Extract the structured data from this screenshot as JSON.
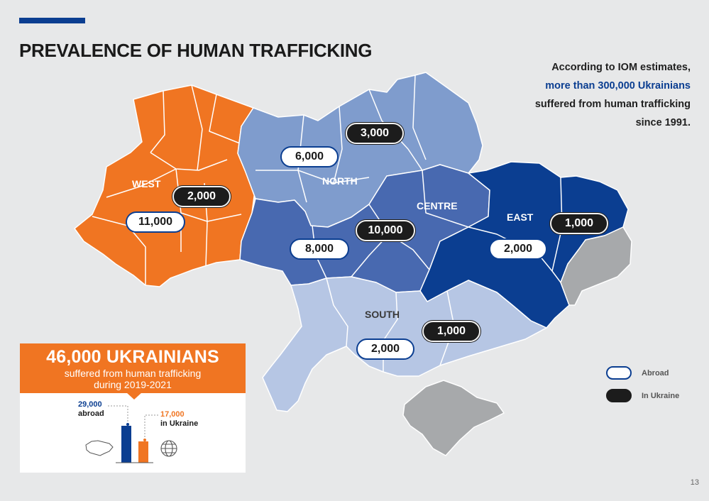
{
  "title": "PREVALENCE OF HUMAN TRAFFICKING",
  "intro": {
    "line1": "According to IOM estimates,",
    "highlight": "more than 300,000 Ukrainians",
    "line3": "suffered from human trafficking",
    "line4": "since 1991."
  },
  "regions": {
    "west": "WEST",
    "north": "NORTH",
    "centre": "CENTRE",
    "east": "EAST",
    "south": "SOUTH"
  },
  "values": {
    "west_abroad": "11,000",
    "west_ukraine": "2,000",
    "north_abroad_a": "6,000",
    "north_ukraine_a": "3,000",
    "north_abroad_b": "8,000",
    "centre_ukraine": "10,000",
    "east_ukraine": "1,000",
    "east_abroad": "2,000",
    "south_ukraine": "1,000",
    "south_abroad": "2,000"
  },
  "inset": {
    "headline": "46,000 UKRAINIANS",
    "sub1": "suffered from human trafficking",
    "sub2": "during 2019-2021",
    "abroad_value": "29,000",
    "abroad_label": "abroad",
    "ukraine_value": "17,000",
    "ukraine_label": "in Ukraine"
  },
  "legend": {
    "abroad": "Abroad",
    "in_ukraine": "In Ukraine"
  },
  "page_number": "13",
  "colors": {
    "west": "#f07522",
    "north": "#7f9ccd",
    "centre": "#4869b0",
    "east": "#0b3e91",
    "south": "#b6c6e4",
    "occupied": "#a7a9ab",
    "accent": "#0b3e91"
  },
  "icons": [
    "ukraine-map-icon",
    "globe-icon"
  ]
}
